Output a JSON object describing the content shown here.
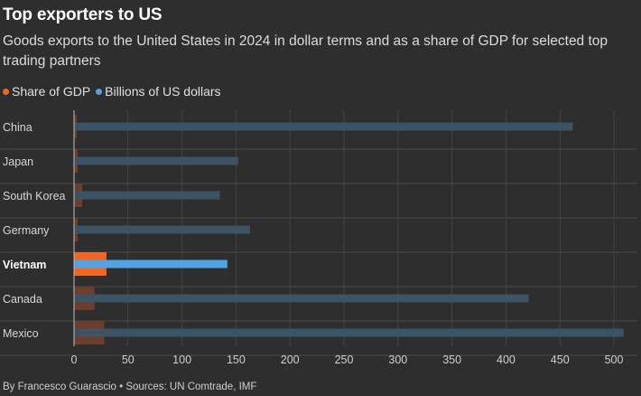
{
  "title": "Top exporters to US",
  "subtitle": "Goods exports to the United States in 2024 in dollar terms and as a share of GDP for selected top trading partners",
  "legend": [
    {
      "label": "Share of GDP",
      "color": "#f26522"
    },
    {
      "label": "Billions of US dollars",
      "color": "#4ea3e0"
    }
  ],
  "footer": "By Francesco Guarascio • Sources: UN Comtrade, IMF",
  "chart_data": {
    "type": "bar",
    "orientation": "horizontal",
    "categories": [
      "China",
      "Japan",
      "South Korea",
      "Germany",
      "Vietnam",
      "Canada",
      "Mexico"
    ],
    "highlight": "Vietnam",
    "series": [
      {
        "name": "Share of GDP",
        "color": "#f26522",
        "values": [
          2.5,
          3.5,
          7.5,
          3.5,
          30,
          19,
          28
        ]
      },
      {
        "name": "Billions of US dollars",
        "color": "#4ea3e0",
        "values": [
          462,
          152,
          135,
          163,
          142,
          421,
          509
        ]
      }
    ],
    "xlim": [
      0,
      510
    ],
    "xticks": [
      0,
      50,
      100,
      150,
      200,
      250,
      300,
      350,
      400,
      450,
      500
    ],
    "grid": true,
    "legend_position": "top-left"
  }
}
